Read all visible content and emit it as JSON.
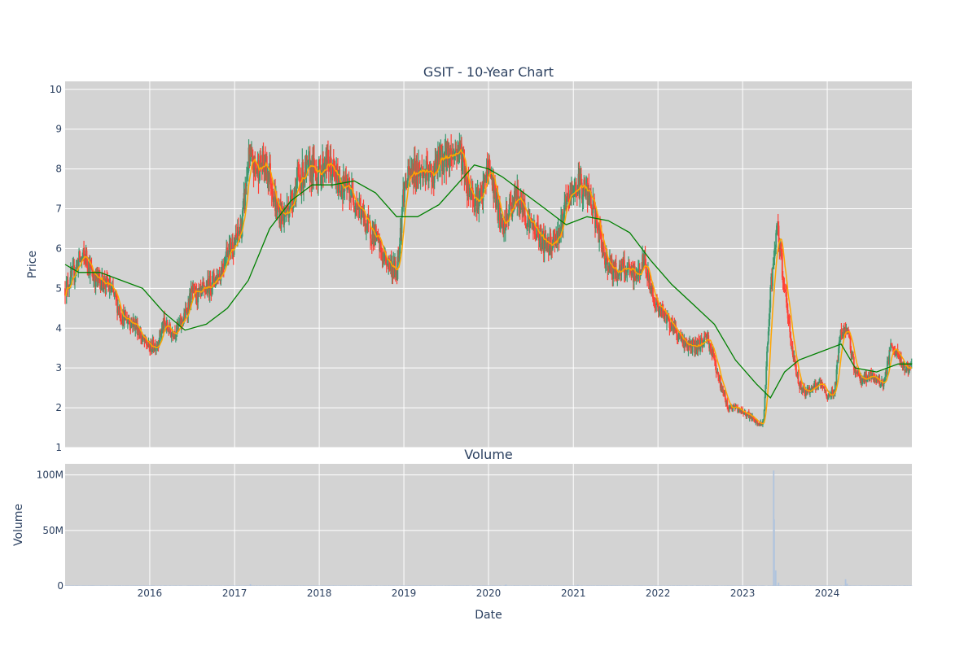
{
  "chart_data": [
    {
      "type": "candlestick",
      "title": "GSIT - 10-Year Chart",
      "xlabel": "",
      "ylabel": "Price",
      "ylim": [
        1,
        10.2
      ],
      "xlim": [
        "2015-01-01",
        "2024-12-31"
      ],
      "yticks": [
        1,
        2,
        3,
        4,
        5,
        6,
        7,
        8,
        9,
        10
      ],
      "xticks": [
        "2016",
        "2017",
        "2018",
        "2019",
        "2020",
        "2021",
        "2022",
        "2023",
        "2024"
      ],
      "grid": true,
      "plot_bgcolor": "#d3d3d3",
      "colors": {
        "up": "#3d9970",
        "down": "#ff4136",
        "ma_short": "#ffa500",
        "ma_long": "#008000"
      },
      "close_trend": [
        [
          "2015-01-01",
          5.0
        ],
        [
          "2015-02-01",
          5.3
        ],
        [
          "2015-03-01",
          5.7
        ],
        [
          "2015-04-01",
          5.8
        ],
        [
          "2015-05-01",
          5.3
        ],
        [
          "2015-06-01",
          5.2
        ],
        [
          "2015-07-01",
          5.1
        ],
        [
          "2015-08-01",
          4.8
        ],
        [
          "2015-09-01",
          4.3
        ],
        [
          "2015-10-01",
          4.2
        ],
        [
          "2015-11-01",
          4.1
        ],
        [
          "2015-12-01",
          3.7
        ],
        [
          "2016-01-01",
          3.5
        ],
        [
          "2016-02-01",
          3.6
        ],
        [
          "2016-03-01",
          4.1
        ],
        [
          "2016-04-01",
          3.9
        ],
        [
          "2016-05-01",
          4.0
        ],
        [
          "2016-06-01",
          4.3
        ],
        [
          "2016-07-01",
          4.9
        ],
        [
          "2016-08-01",
          4.8
        ],
        [
          "2016-09-01",
          5.0
        ],
        [
          "2016-10-01",
          5.2
        ],
        [
          "2016-11-01",
          5.4
        ],
        [
          "2016-12-01",
          6.0
        ],
        [
          "2017-01-01",
          6.1
        ],
        [
          "2017-02-01",
          6.6
        ],
        [
          "2017-03-01",
          8.2
        ],
        [
          "2017-04-01",
          8.0
        ],
        [
          "2017-05-01",
          8.1
        ],
        [
          "2017-06-01",
          7.9
        ],
        [
          "2017-07-01",
          7.0
        ],
        [
          "2017-08-01",
          6.8
        ],
        [
          "2017-09-01",
          7.2
        ],
        [
          "2017-10-01",
          7.7
        ],
        [
          "2017-11-01",
          7.9
        ],
        [
          "2017-12-01",
          8.0
        ],
        [
          "2018-01-01",
          7.9
        ],
        [
          "2018-02-01",
          8.2
        ],
        [
          "2018-03-01",
          7.9
        ],
        [
          "2018-04-01",
          7.6
        ],
        [
          "2018-05-01",
          7.5
        ],
        [
          "2018-06-01",
          7.3
        ],
        [
          "2018-07-01",
          6.9
        ],
        [
          "2018-08-01",
          6.5
        ],
        [
          "2018-09-01",
          6.3
        ],
        [
          "2018-10-01",
          5.8
        ],
        [
          "2018-11-01",
          5.6
        ],
        [
          "2018-12-01",
          5.4
        ],
        [
          "2019-01-01",
          7.5
        ],
        [
          "2019-02-01",
          7.9
        ],
        [
          "2019-03-01",
          8.0
        ],
        [
          "2019-04-01",
          7.9
        ],
        [
          "2019-05-01",
          7.8
        ],
        [
          "2019-06-01",
          8.2
        ],
        [
          "2019-07-01",
          8.3
        ],
        [
          "2019-08-01",
          8.4
        ],
        [
          "2019-09-01",
          8.5
        ],
        [
          "2019-10-01",
          7.6
        ],
        [
          "2019-11-01",
          7.3
        ],
        [
          "2019-12-01",
          7.2
        ],
        [
          "2020-01-01",
          8.1
        ],
        [
          "2020-02-01",
          7.3
        ],
        [
          "2020-03-01",
          6.4
        ],
        [
          "2020-04-01",
          7.0
        ],
        [
          "2020-05-01",
          7.3
        ],
        [
          "2020-06-01",
          7.0
        ],
        [
          "2020-07-01",
          6.6
        ],
        [
          "2020-08-01",
          6.4
        ],
        [
          "2020-09-01",
          6.1
        ],
        [
          "2020-10-01",
          6.2
        ],
        [
          "2020-11-01",
          6.4
        ],
        [
          "2020-12-01",
          7.1
        ],
        [
          "2021-01-01",
          7.5
        ],
        [
          "2021-02-01",
          7.6
        ],
        [
          "2021-03-01",
          7.4
        ],
        [
          "2021-04-01",
          6.9
        ],
        [
          "2021-05-01",
          6.1
        ],
        [
          "2021-06-01",
          5.6
        ],
        [
          "2021-07-01",
          5.4
        ],
        [
          "2021-08-01",
          5.5
        ],
        [
          "2021-09-01",
          5.4
        ],
        [
          "2021-10-01",
          5.3
        ],
        [
          "2021-11-01",
          5.7
        ],
        [
          "2021-12-01",
          5.0
        ],
        [
          "2022-01-01",
          4.5
        ],
        [
          "2022-02-01",
          4.3
        ],
        [
          "2022-03-01",
          4.1
        ],
        [
          "2022-04-01",
          3.8
        ],
        [
          "2022-05-01",
          3.6
        ],
        [
          "2022-06-01",
          3.5
        ],
        [
          "2022-07-01",
          3.6
        ],
        [
          "2022-08-01",
          3.8
        ],
        [
          "2022-09-01",
          3.2
        ],
        [
          "2022-10-01",
          2.5
        ],
        [
          "2022-11-01",
          2.0
        ],
        [
          "2022-12-01",
          2.0
        ],
        [
          "2023-01-01",
          1.9
        ],
        [
          "2023-02-01",
          1.8
        ],
        [
          "2023-03-01",
          1.6
        ],
        [
          "2023-04-01",
          1.6
        ],
        [
          "2023-05-01",
          5.0
        ],
        [
          "2023-06-01",
          6.5
        ],
        [
          "2023-07-01",
          5.0
        ],
        [
          "2023-08-01",
          3.5
        ],
        [
          "2023-09-01",
          2.6
        ],
        [
          "2023-10-01",
          2.4
        ],
        [
          "2023-11-01",
          2.5
        ],
        [
          "2023-12-01",
          2.6
        ],
        [
          "2024-01-01",
          2.3
        ],
        [
          "2024-02-01",
          2.4
        ],
        [
          "2024-03-01",
          4.0
        ],
        [
          "2024-04-01",
          3.8
        ],
        [
          "2024-05-01",
          2.9
        ],
        [
          "2024-06-01",
          2.7
        ],
        [
          "2024-07-01",
          2.8
        ],
        [
          "2024-08-01",
          2.7
        ],
        [
          "2024-09-01",
          2.6
        ],
        [
          "2024-10-01",
          3.5
        ],
        [
          "2024-11-01",
          3.3
        ],
        [
          "2024-12-01",
          3.0
        ]
      ],
      "ma_long": [
        [
          "2015-01-01",
          5.6
        ],
        [
          "2015-03-01",
          5.4
        ],
        [
          "2015-06-01",
          5.4
        ],
        [
          "2015-09-01",
          5.2
        ],
        [
          "2015-12-01",
          5.0
        ],
        [
          "2016-03-01",
          4.4
        ],
        [
          "2016-06-01",
          3.95
        ],
        [
          "2016-09-01",
          4.1
        ],
        [
          "2016-12-01",
          4.5
        ],
        [
          "2017-03-01",
          5.2
        ],
        [
          "2017-06-01",
          6.5
        ],
        [
          "2017-09-01",
          7.2
        ],
        [
          "2017-12-01",
          7.6
        ],
        [
          "2018-03-01",
          7.6
        ],
        [
          "2018-06-01",
          7.7
        ],
        [
          "2018-09-01",
          7.4
        ],
        [
          "2018-12-01",
          6.8
        ],
        [
          "2019-03-01",
          6.8
        ],
        [
          "2019-06-01",
          7.1
        ],
        [
          "2019-09-01",
          7.7
        ],
        [
          "2019-11-01",
          8.1
        ],
        [
          "2020-01-01",
          8.0
        ],
        [
          "2020-03-01",
          7.8
        ],
        [
          "2020-06-01",
          7.4
        ],
        [
          "2020-09-01",
          7.0
        ],
        [
          "2020-12-01",
          6.6
        ],
        [
          "2021-03-01",
          6.8
        ],
        [
          "2021-06-01",
          6.7
        ],
        [
          "2021-09-01",
          6.4
        ],
        [
          "2021-12-01",
          5.7
        ],
        [
          "2022-03-01",
          5.1
        ],
        [
          "2022-06-01",
          4.6
        ],
        [
          "2022-09-01",
          4.1
        ],
        [
          "2022-12-01",
          3.2
        ],
        [
          "2023-03-01",
          2.6
        ],
        [
          "2023-05-01",
          2.25
        ],
        [
          "2023-07-01",
          2.9
        ],
        [
          "2023-09-01",
          3.2
        ],
        [
          "2023-12-01",
          3.4
        ],
        [
          "2024-03-01",
          3.6
        ],
        [
          "2024-05-01",
          3.0
        ],
        [
          "2024-08-01",
          2.9
        ],
        [
          "2024-11-01",
          3.1
        ],
        [
          "2024-12-31",
          3.1
        ]
      ]
    },
    {
      "type": "bar",
      "title": "Volume",
      "xlabel": "Date",
      "ylabel": "Volume",
      "ylim": [
        0,
        110000000
      ],
      "yticks": [
        0,
        50000000,
        100000000
      ],
      "ytick_labels": [
        "0",
        "50M",
        "100M"
      ],
      "xticks": [
        "2016",
        "2017",
        "2018",
        "2019",
        "2020",
        "2021",
        "2022",
        "2023",
        "2024"
      ],
      "grid": true,
      "bar_color": "#b0c4de",
      "baseline_volume": 300000,
      "spikes": [
        [
          "2023-05-15",
          104000000
        ],
        [
          "2023-05-17",
          60000000
        ],
        [
          "2023-05-24",
          14000000
        ],
        [
          "2023-06-05",
          3000000
        ],
        [
          "2024-03-20",
          6000000
        ],
        [
          "2024-03-27",
          2000000
        ],
        [
          "2017-03-10",
          1500000
        ],
        [
          "2020-03-16",
          1200000
        ],
        [
          "2021-01-20",
          1000000
        ]
      ]
    }
  ]
}
